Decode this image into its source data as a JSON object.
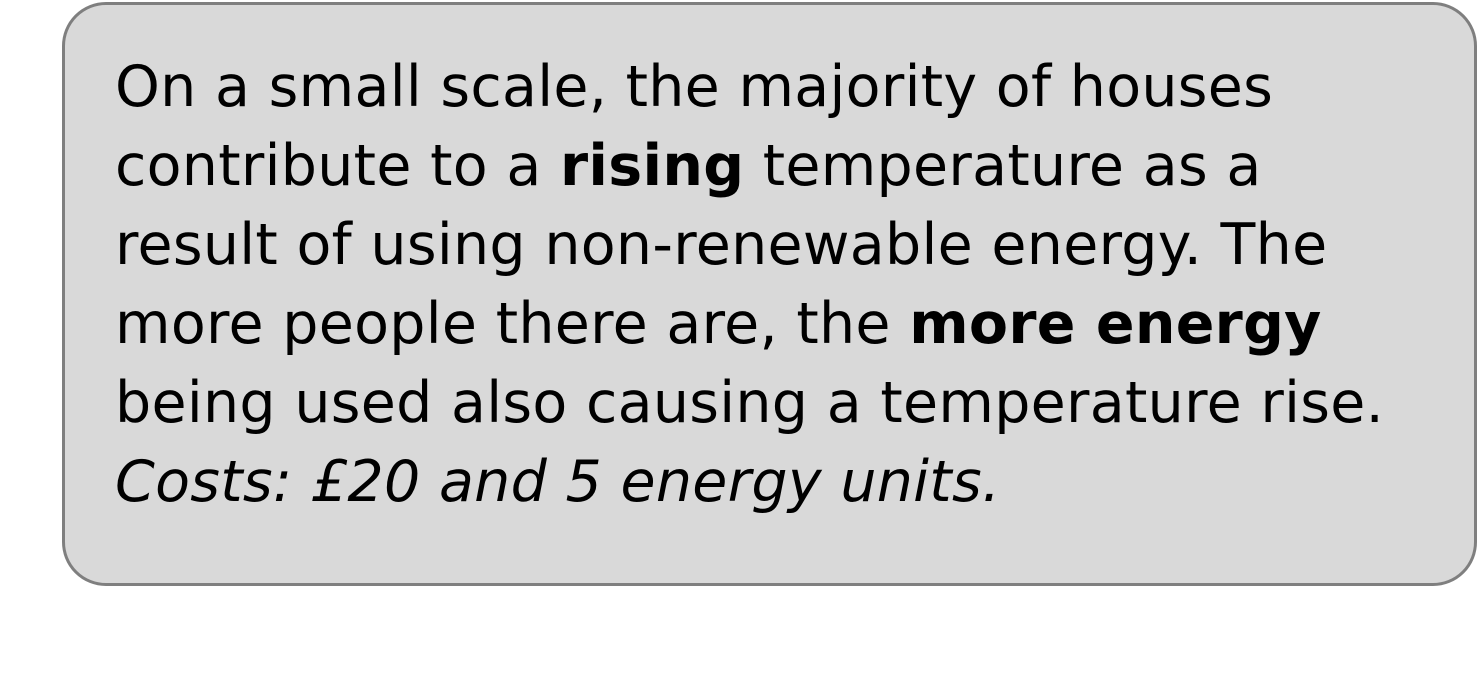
{
  "card": {
    "background_color": "#d9d9d9",
    "border_color": "#7f7f7f",
    "lines": [
      {
        "segments": [
          {
            "text": "On a small scale, the majority of houses",
            "style": "normal"
          }
        ]
      },
      {
        "segments": [
          {
            "text": "contribute to a ",
            "style": "normal"
          },
          {
            "text": "rising",
            "style": "bold"
          },
          {
            "text": " temperature as a",
            "style": "normal"
          }
        ]
      },
      {
        "segments": [
          {
            "text": "result of using non-renewable energy. The",
            "style": "normal"
          }
        ]
      },
      {
        "segments": [
          {
            "text": "more people there are, the ",
            "style": "normal"
          },
          {
            "text": "more energy",
            "style": "bold"
          }
        ]
      },
      {
        "segments": [
          {
            "text": "being used also causing a temperature rise.",
            "style": "normal"
          }
        ]
      },
      {
        "segments": [
          {
            "text": "Costs: £20 and 5 energy units.",
            "style": "italic"
          }
        ]
      }
    ]
  }
}
